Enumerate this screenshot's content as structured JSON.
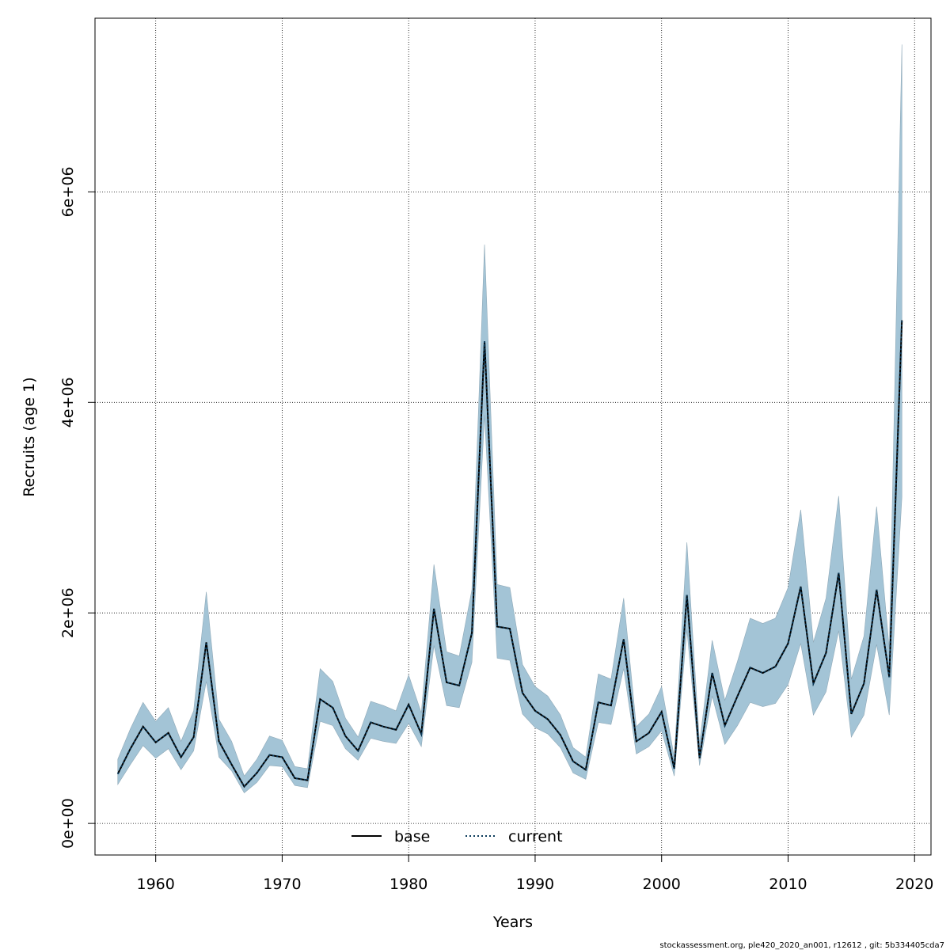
{
  "chart_data": {
    "type": "area",
    "xlabel": "Years",
    "ylabel": "Recruits (age 1)",
    "xlim": [
      1955.2,
      2021.3
    ],
    "ylim": [
      -300000,
      7650000
    ],
    "x_ticks": [
      1960,
      1970,
      1980,
      1990,
      2000,
      2010,
      2020
    ],
    "x_tick_labels": [
      "1960",
      "1970",
      "1980",
      "1990",
      "2000",
      "2010",
      "2020"
    ],
    "y_ticks": [
      0,
      2000000,
      4000000,
      6000000
    ],
    "y_tick_labels": [
      "0e+00",
      "2e+06",
      "4e+06",
      "6e+06"
    ],
    "grid": true,
    "legend_position": "bottom",
    "colors": {
      "band": "#a3c4d6",
      "current_line": "#0a3a5a",
      "base_line": "#000000"
    },
    "x": [
      1957,
      1958,
      1959,
      1960,
      1961,
      1962,
      1963,
      1964,
      1965,
      1966,
      1967,
      1968,
      1969,
      1970,
      1971,
      1972,
      1973,
      1974,
      1975,
      1976,
      1977,
      1978,
      1979,
      1980,
      1981,
      1982,
      1983,
      1984,
      1985,
      1986,
      1987,
      1988,
      1989,
      1990,
      1991,
      1992,
      1993,
      1994,
      1995,
      1996,
      1997,
      1998,
      1999,
      2000,
      2001,
      2002,
      2003,
      2004,
      2005,
      2006,
      2007,
      2008,
      2009,
      2010,
      2011,
      2012,
      2013,
      2014,
      2015,
      2016,
      2017,
      2018,
      2019
    ],
    "band_upper": [
      610000,
      900000,
      1150000,
      970000,
      1100000,
      780000,
      1070000,
      2200000,
      990000,
      780000,
      450000,
      610000,
      830000,
      790000,
      540000,
      520000,
      1470000,
      1350000,
      1000000,
      820000,
      1160000,
      1120000,
      1070000,
      1410000,
      1050000,
      2460000,
      1630000,
      1590000,
      2220000,
      5500000,
      2270000,
      2240000,
      1510000,
      1300000,
      1210000,
      1030000,
      720000,
      630000,
      1420000,
      1370000,
      2140000,
      920000,
      1040000,
      1300000,
      630000,
      2670000,
      760000,
      1740000,
      1170000,
      1540000,
      1950000,
      1900000,
      1950000,
      2240000,
      2980000,
      1720000,
      2140000,
      3110000,
      1370000,
      1780000,
      3010000,
      1660000,
      7400000
    ],
    "series": [
      {
        "name": "base",
        "values": [
          470000,
          710000,
          920000,
          770000,
          860000,
          630000,
          820000,
          1720000,
          780000,
          560000,
          350000,
          480000,
          650000,
          630000,
          430000,
          410000,
          1180000,
          1100000,
          830000,
          690000,
          960000,
          920000,
          890000,
          1130000,
          850000,
          2040000,
          1340000,
          1310000,
          1810000,
          4580000,
          1870000,
          1850000,
          1240000,
          1070000,
          990000,
          840000,
          590000,
          510000,
          1150000,
          1120000,
          1750000,
          780000,
          860000,
          1060000,
          520000,
          2170000,
          620000,
          1430000,
          930000,
          1210000,
          1480000,
          1430000,
          1490000,
          1710000,
          2250000,
          1330000,
          1620000,
          2380000,
          1040000,
          1330000,
          2220000,
          1390000,
          4780000
        ]
      },
      {
        "name": "current",
        "values": [
          470000,
          710000,
          920000,
          770000,
          860000,
          630000,
          820000,
          1720000,
          780000,
          560000,
          350000,
          480000,
          650000,
          630000,
          430000,
          410000,
          1180000,
          1100000,
          830000,
          690000,
          960000,
          920000,
          890000,
          1130000,
          850000,
          2040000,
          1340000,
          1310000,
          1810000,
          4580000,
          1870000,
          1850000,
          1240000,
          1070000,
          990000,
          840000,
          590000,
          510000,
          1150000,
          1120000,
          1750000,
          780000,
          860000,
          1060000,
          520000,
          2170000,
          620000,
          1430000,
          930000,
          1210000,
          1480000,
          1430000,
          1490000,
          1710000,
          2250000,
          1330000,
          1620000,
          2380000,
          1040000,
          1330000,
          2220000,
          1390000,
          4780000
        ]
      }
    ],
    "band_lower": [
      370000,
      560000,
      740000,
      620000,
      710000,
      510000,
      690000,
      1350000,
      630000,
      500000,
      290000,
      390000,
      550000,
      540000,
      360000,
      340000,
      970000,
      930000,
      710000,
      600000,
      810000,
      780000,
      760000,
      950000,
      730000,
      1690000,
      1120000,
      1100000,
      1530000,
      3880000,
      1570000,
      1550000,
      1040000,
      910000,
      850000,
      720000,
      480000,
      420000,
      960000,
      940000,
      1470000,
      660000,
      730000,
      880000,
      450000,
      1840000,
      550000,
      1210000,
      750000,
      930000,
      1150000,
      1110000,
      1140000,
      1320000,
      1710000,
      1030000,
      1250000,
      1830000,
      820000,
      1030000,
      1700000,
      1030000,
      3100000
    ]
  },
  "legend": {
    "base_label": "base",
    "current_label": "current"
  },
  "footer": "stockassessment.org, ple420_2020_an001, r12612 , git: 5b334405cda7"
}
